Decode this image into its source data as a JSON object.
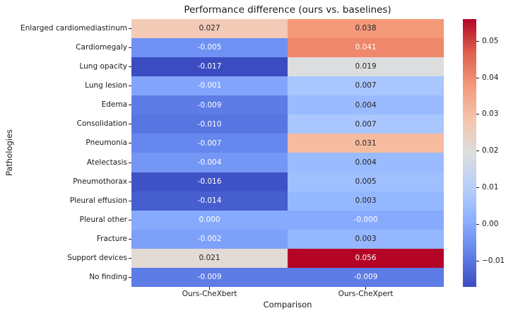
{
  "chart_data": {
    "type": "heatmap",
    "title": "Performance difference (ours vs. baselines)",
    "xlabel": "Comparison",
    "ylabel": "Pathologies",
    "columns": [
      "Ours-CheXbert",
      "Ours-CheXpert"
    ],
    "rows": [
      "Enlarged cardiomediastinum",
      "Cardiomegaly",
      "Lung opacity",
      "Lung lesion",
      "Edema",
      "Consolidation",
      "Pneumonia",
      "Atelectasis",
      "Pneumothorax",
      "Pleural effusion",
      "Pleural other",
      "Fracture",
      "Support devices",
      "No finding"
    ],
    "values": [
      [
        0.027,
        0.038
      ],
      [
        -0.005,
        0.041
      ],
      [
        -0.017,
        0.019
      ],
      [
        -0.001,
        0.007
      ],
      [
        -0.009,
        0.004
      ],
      [
        -0.01,
        0.007
      ],
      [
        -0.007,
        0.031
      ],
      [
        -0.004,
        0.004
      ],
      [
        -0.016,
        0.005
      ],
      [
        -0.014,
        0.003
      ],
      [
        0.0,
        -0.0
      ],
      [
        -0.002,
        0.003
      ],
      [
        0.021,
        0.056
      ],
      [
        -0.009,
        -0.009
      ]
    ],
    "cell_labels": [
      [
        "0.027",
        "0.038"
      ],
      [
        "-0.005",
        "0.041"
      ],
      [
        "-0.017",
        "0.019"
      ],
      [
        "-0.001",
        "0.007"
      ],
      [
        "-0.009",
        "0.004"
      ],
      [
        "-0.010",
        "0.007"
      ],
      [
        "-0.007",
        "0.031"
      ],
      [
        "-0.004",
        "0.004"
      ],
      [
        "-0.016",
        "0.005"
      ],
      [
        "-0.014",
        "0.003"
      ],
      [
        "0.000",
        "-0.000"
      ],
      [
        "-0.002",
        "0.003"
      ],
      [
        "0.021",
        "0.056"
      ],
      [
        "-0.009",
        "-0.009"
      ]
    ],
    "colormap": "coolwarm",
    "vmin": -0.017,
    "vmax": 0.056,
    "colorbar_tick_values": [
      0.05,
      0.04,
      0.03,
      0.02,
      0.01,
      0.0,
      -0.01
    ],
    "colorbar_tick_labels": [
      "0.05",
      "0.04",
      "0.03",
      "0.02",
      "0.01",
      "0.00",
      "−0.01"
    ],
    "colors": {
      "background": "#ffffff",
      "annotation_dark": "#262626",
      "annotation_light": "#ffffff",
      "cmap_min": "#3b4cc0",
      "cmap_mid": "#dddddd",
      "cmap_max": "#b40426"
    },
    "legend_position": "right-colorbar",
    "grid": false
  }
}
